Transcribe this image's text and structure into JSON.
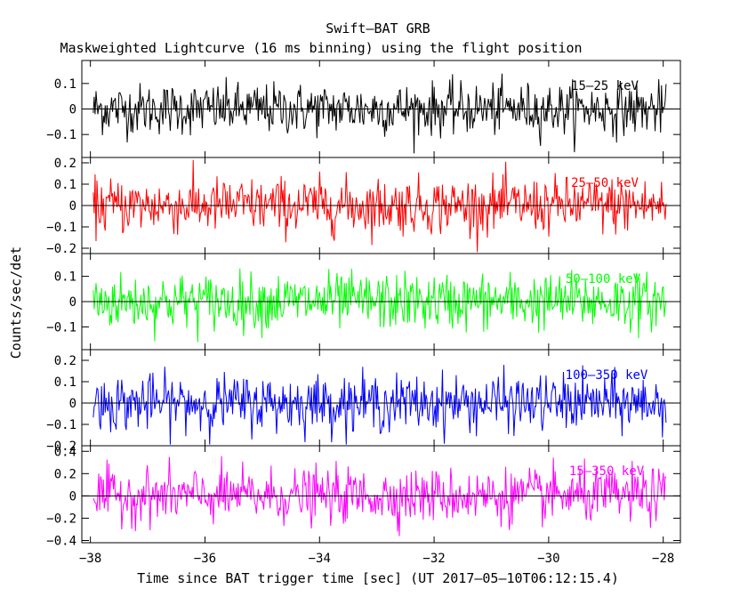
{
  "chart_data": {
    "type": "line",
    "title": "Swift–BAT GRB",
    "subtitle": "Maskweighted Lightcurve (16 ms binning) using the flight position",
    "xlabel": "Time since BAT trigger time [sec] (UT 2017–05–10T06:12:15.4)",
    "ylabel": "Counts/sec/det",
    "xlim": [
      -38.15,
      -27.7
    ],
    "x_ticks": [
      -38,
      -36,
      -34,
      -32,
      -30,
      -28
    ],
    "x_tick_labels": [
      "−38",
      "−36",
      "−34",
      "−32",
      "−30",
      "−28"
    ],
    "x_start": -37.95,
    "x_end": -27.95,
    "bin_width": 0.016,
    "grid": false,
    "panels": [
      {
        "name": "15–25 keV",
        "color": "#000000",
        "ylim": [
          -0.19,
          0.19
        ],
        "noise_sigma": 0.05,
        "y_ticks": [
          -0.1,
          0,
          0.1
        ],
        "y_tick_labels": [
          "−0.1",
          "0",
          "0.1"
        ]
      },
      {
        "name": "25–50 keV",
        "color": "#ff0000",
        "ylim": [
          -0.225,
          0.225
        ],
        "noise_sigma": 0.065,
        "y_ticks": [
          -0.2,
          -0.1,
          0,
          0.1,
          0.2
        ],
        "y_tick_labels": [
          "−0.2",
          "−0.1",
          "0",
          "0.1",
          "0.2"
        ]
      },
      {
        "name": "50–100 keV",
        "color": "#00ff00",
        "ylim": [
          -0.19,
          0.19
        ],
        "noise_sigma": 0.055,
        "y_ticks": [
          -0.1,
          0,
          0.1
        ],
        "y_tick_labels": [
          "−0.1",
          "0",
          "0.1"
        ]
      },
      {
        "name": "100–350 keV",
        "color": "#0000ff",
        "ylim": [
          -0.2,
          0.25
        ],
        "noise_sigma": 0.065,
        "y_ticks": [
          -0.2,
          -0.1,
          0,
          0.1,
          0.2
        ],
        "y_tick_labels": [
          "−0.2",
          "−0.1",
          "0",
          "0.1",
          "0.2"
        ]
      },
      {
        "name": "15–350 keV",
        "color": "#ff00ff",
        "ylim": [
          -0.42,
          0.45
        ],
        "noise_sigma": 0.12,
        "y_ticks": [
          -0.4,
          -0.2,
          0,
          0.2,
          0.4
        ],
        "y_tick_labels": [
          "−0.4",
          "−0.2",
          "0",
          "0.2",
          "0.4"
        ]
      }
    ]
  }
}
